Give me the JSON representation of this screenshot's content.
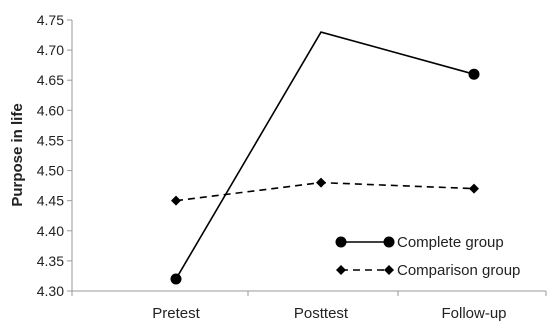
{
  "chart_data": {
    "type": "line",
    "categories": [
      "Pretest",
      "Posttest",
      "Follow-up"
    ],
    "series": [
      {
        "name": "Complete group",
        "values": [
          4.32,
          4.73,
          4.66
        ],
        "line": "solid",
        "marker": "circle",
        "color": "#000000"
      },
      {
        "name": "Comparison group",
        "values": [
          4.45,
          4.48,
          4.47
        ],
        "line": "dashed",
        "marker": "diamond",
        "color": "#000000"
      }
    ],
    "title": "",
    "xlabel": "",
    "ylabel": "Purpose in life",
    "ylim": [
      4.3,
      4.75
    ],
    "yticks": [
      "4.30",
      "4.35",
      "4.40",
      "4.45",
      "4.50",
      "4.55",
      "4.60",
      "4.65",
      "4.70",
      "4.75"
    ],
    "grid": false,
    "legend_position": "bottom-right"
  }
}
